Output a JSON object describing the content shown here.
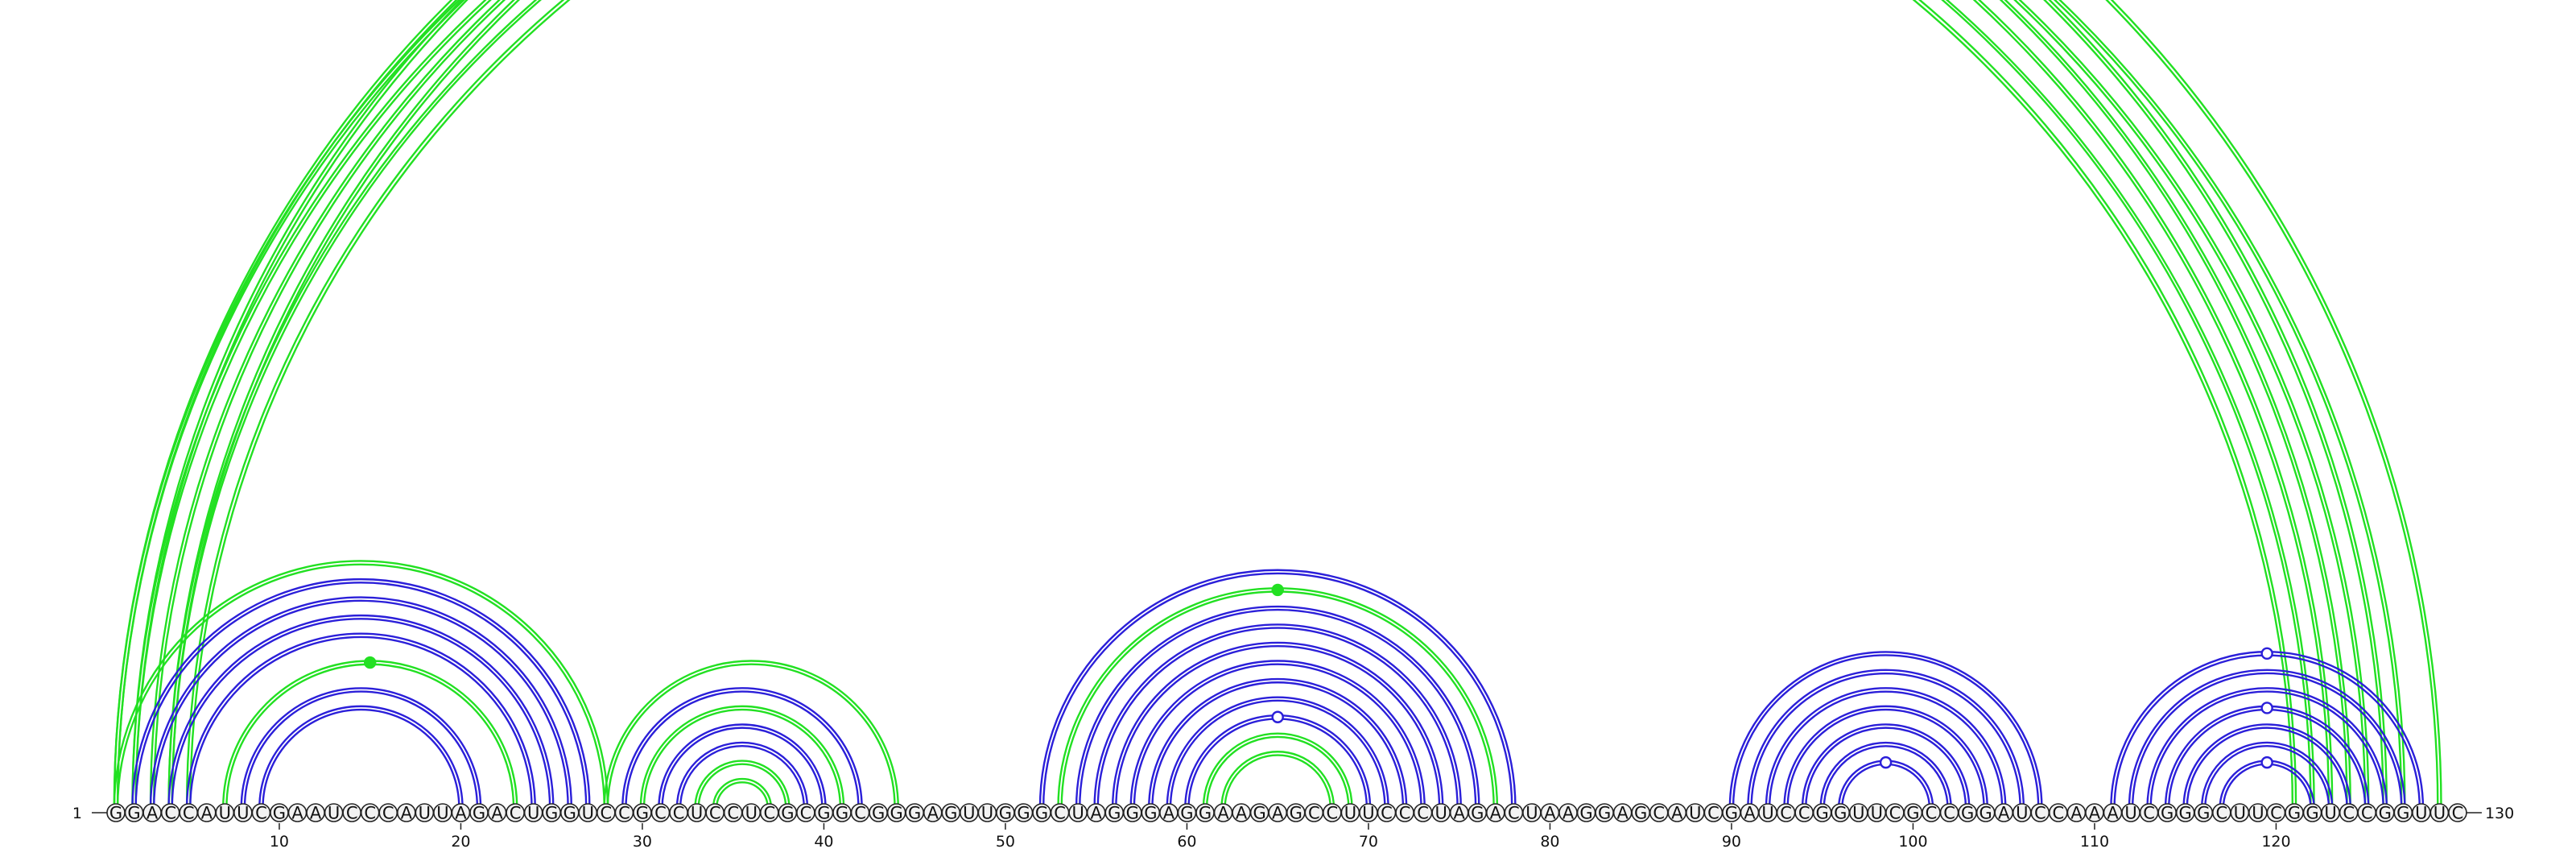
{
  "sequence": "GGACCAUUCGAAUCCCAUUAGACUGGUCCGCCUCCUCGCGGCGGGAGUUGGGCUAGGGAGGAAGAGCCUUCCCUAGACUAAGGAGCAUCGAUCCGGUUCGCCGGAUCCAAAUCGGGCUUCGGUCCGGUUC",
  "start_label": "1",
  "end_label": "130",
  "ticks": [
    {
      "pos": 10,
      "label": "10"
    },
    {
      "pos": 20,
      "label": "20"
    },
    {
      "pos": 30,
      "label": "30"
    },
    {
      "pos": 40,
      "label": "40"
    },
    {
      "pos": 50,
      "label": "50"
    },
    {
      "pos": 60,
      "label": "60"
    },
    {
      "pos": 70,
      "label": "70"
    },
    {
      "pos": 80,
      "label": "80"
    },
    {
      "pos": 90,
      "label": "90"
    },
    {
      "pos": 100,
      "label": "100"
    },
    {
      "pos": 110,
      "label": "110"
    },
    {
      "pos": 120,
      "label": "120"
    }
  ],
  "colors": {
    "blue": "#2b1fd9",
    "green": "#22e022"
  },
  "arcs": [
    {
      "i": 1,
      "j": 124,
      "color": "green",
      "strands": 2
    },
    {
      "i": 1,
      "j": 126,
      "color": "green",
      "strands": 2
    },
    {
      "i": 2,
      "j": 123,
      "color": "green",
      "strands": 2
    },
    {
      "i": 3,
      "j": 125,
      "color": "green",
      "strands": 2
    },
    {
      "i": 4,
      "j": 122,
      "color": "green",
      "strands": 2
    },
    {
      "i": 4,
      "j": 127,
      "color": "green",
      "strands": 2
    },
    {
      "i": 5,
      "j": 121,
      "color": "green",
      "strands": 2
    },
    {
      "i": 2,
      "j": 129,
      "color": "green",
      "strands": 2,
      "marker": "open"
    },
    {
      "i": 1,
      "j": 28,
      "color": "green",
      "strands": 2
    },
    {
      "i": 2,
      "j": 27,
      "color": "blue",
      "strands": 2
    },
    {
      "i": 3,
      "j": 26,
      "color": "blue",
      "strands": 2
    },
    {
      "i": 4,
      "j": 25,
      "color": "blue",
      "strands": 2
    },
    {
      "i": 5,
      "j": 24,
      "color": "blue",
      "strands": 2
    },
    {
      "i": 7,
      "j": 23,
      "color": "green",
      "strands": 2,
      "marker": "filled"
    },
    {
      "i": 8,
      "j": 21,
      "color": "blue",
      "strands": 2
    },
    {
      "i": 9,
      "j": 20,
      "color": "blue",
      "strands": 2
    },
    {
      "i": 28,
      "j": 44,
      "color": "green",
      "strands": 2
    },
    {
      "i": 29,
      "j": 42,
      "color": "blue",
      "strands": 2
    },
    {
      "i": 30,
      "j": 41,
      "color": "green",
      "strands": 2
    },
    {
      "i": 31,
      "j": 40,
      "color": "blue",
      "strands": 2
    },
    {
      "i": 32,
      "j": 39,
      "color": "blue",
      "strands": 2
    },
    {
      "i": 33,
      "j": 38,
      "color": "green",
      "strands": 2
    },
    {
      "i": 34,
      "j": 37,
      "color": "green",
      "strands": 2
    },
    {
      "i": 52,
      "j": 78,
      "color": "blue",
      "strands": 2
    },
    {
      "i": 53,
      "j": 77,
      "color": "green",
      "strands": 2,
      "marker": "filled"
    },
    {
      "i": 54,
      "j": 76,
      "color": "blue",
      "strands": 2
    },
    {
      "i": 55,
      "j": 75,
      "color": "blue",
      "strands": 2
    },
    {
      "i": 56,
      "j": 74,
      "color": "blue",
      "strands": 2
    },
    {
      "i": 57,
      "j": 73,
      "color": "blue",
      "strands": 2
    },
    {
      "i": 58,
      "j": 72,
      "color": "blue",
      "strands": 2
    },
    {
      "i": 59,
      "j": 71,
      "color": "blue",
      "strands": 2
    },
    {
      "i": 60,
      "j": 70,
      "color": "blue",
      "strands": 2,
      "marker": "open"
    },
    {
      "i": 61,
      "j": 69,
      "color": "green",
      "strands": 2
    },
    {
      "i": 62,
      "j": 68,
      "color": "green",
      "strands": 2
    },
    {
      "i": 90,
      "j": 107,
      "color": "blue",
      "strands": 2
    },
    {
      "i": 91,
      "j": 106,
      "color": "blue",
      "strands": 2
    },
    {
      "i": 92,
      "j": 105,
      "color": "blue",
      "strands": 2
    },
    {
      "i": 93,
      "j": 104,
      "color": "blue",
      "strands": 2
    },
    {
      "i": 94,
      "j": 103,
      "color": "blue",
      "strands": 2
    },
    {
      "i": 95,
      "j": 102,
      "color": "blue",
      "strands": 2
    },
    {
      "i": 96,
      "j": 101,
      "color": "blue",
      "strands": 2,
      "marker": "open"
    },
    {
      "i": 111,
      "j": 128,
      "color": "blue",
      "strands": 2,
      "marker": "open"
    },
    {
      "i": 112,
      "j": 127,
      "color": "blue",
      "strands": 2
    },
    {
      "i": 113,
      "j": 126,
      "color": "blue",
      "strands": 2
    },
    {
      "i": 114,
      "j": 125,
      "color": "blue",
      "strands": 2,
      "marker": "open"
    },
    {
      "i": 115,
      "j": 124,
      "color": "blue",
      "strands": 2
    },
    {
      "i": 116,
      "j": 123,
      "color": "blue",
      "strands": 2
    },
    {
      "i": 117,
      "j": 122,
      "color": "blue",
      "strands": 2,
      "marker": "open"
    }
  ]
}
